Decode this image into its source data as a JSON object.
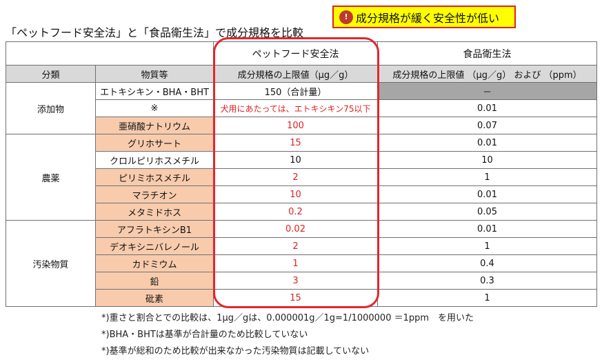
{
  "title": "「ペットフード安全法」と「食品衛生法」で成分規格を比較",
  "callout": {
    "icon": "alert-face-icon",
    "text": "成分規格が緩く安全性が低い"
  },
  "headers": {
    "pet_law": "ペットフード安全法",
    "food_law": "食品衛生法",
    "category": "分類",
    "substance": "物質等",
    "pet_limit": "成分規格の上限値（μg／g）",
    "food_limit": "成分規格の上限値 （μg／g） および （ppm）"
  },
  "groups": [
    {
      "category": "添加物",
      "rows": [
        {
          "substance": "エトキシキン・BHA・BHT",
          "pet": "150（合計量）",
          "food": "－",
          "food_gray": true
        },
        {
          "substance": "※",
          "pet": "犬用にあたっては、エトキシキン75以下",
          "pet_red": true,
          "pet_small": true,
          "food": "0.01"
        },
        {
          "substance": "亜硝酸ナトリウム",
          "orange": true,
          "pet": "100",
          "pet_red": true,
          "food": "0.07"
        }
      ]
    },
    {
      "category": "農薬",
      "rows": [
        {
          "substance": "グリホサート",
          "orange": true,
          "pet": "15",
          "pet_red": true,
          "food": "0.01"
        },
        {
          "substance": "クロルピリホスメチル",
          "pet": "10",
          "food": "10"
        },
        {
          "substance": "ピリミホスメチル",
          "orange": true,
          "pet": "2",
          "pet_red": true,
          "food": "1"
        },
        {
          "substance": "マラチオン",
          "orange": true,
          "pet": "10",
          "pet_red": true,
          "food": "0.01"
        },
        {
          "substance": "メタミドホス",
          "orange": true,
          "pet": "0.2",
          "pet_red": true,
          "food": "0.05"
        }
      ]
    },
    {
      "category": "汚染物質",
      "rows": [
        {
          "substance": "アフラトキシンB1",
          "orange": true,
          "pet": "0.02",
          "pet_red": true,
          "food": "0.01"
        },
        {
          "substance": "デオキシニバレノール",
          "orange": true,
          "pet": "2",
          "pet_red": true,
          "food": "1"
        },
        {
          "substance": "カドミウム",
          "orange": true,
          "pet": "1",
          "pet_red": true,
          "food": "0.4"
        },
        {
          "substance": "鉛",
          "orange": true,
          "pet": "3",
          "pet_red": true,
          "food": "0.3"
        },
        {
          "substance": "砒素",
          "orange": true,
          "pet": "15",
          "pet_red": true,
          "food": "1"
        }
      ]
    }
  ],
  "notes": [
    "*)重さと割合とでの比較は、1μg／gは、0.000001g／1g=1/1000000 ＝1ppm　を用いた",
    "*)BHA・BHTは基準が合計量のため比較していない",
    "*)基準が総和のため比較が出来なかった汚染物質は記載していない"
  ],
  "colors": {
    "highlight_red": "#e3262a",
    "orange_cell": "#f8cbad",
    "header_gray": "#d9d9d9",
    "callout_yellow": "#ffff00"
  }
}
